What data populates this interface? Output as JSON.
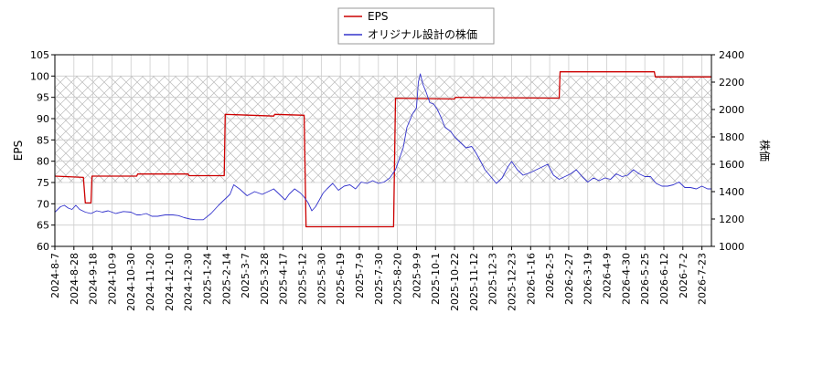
{
  "chart_data": {
    "type": "line",
    "left_axis": {
      "label": "EPS",
      "ylim": [
        60,
        105
      ],
      "ticks": [
        60,
        65,
        70,
        75,
        80,
        85,
        90,
        95,
        100,
        105
      ]
    },
    "right_axis": {
      "label": "株価",
      "ylim": [
        1000,
        2400
      ],
      "ticks": [
        1000,
        1200,
        1400,
        1600,
        1800,
        2000,
        2200,
        2400
      ]
    },
    "x_tick_labels": [
      "2024-8-7",
      "2024-8-28",
      "2024-9-18",
      "2024-10-9",
      "2024-10-30",
      "2024-11-20",
      "2024-12-10",
      "2024-12-30",
      "2025-1-24",
      "2025-2-14",
      "2025-3-7",
      "2025-3-28",
      "2025-4-17",
      "2025-5-12",
      "2025-5-30",
      "2025-6-19",
      "2025-7-9",
      "2025-7-30",
      "2025-8-20",
      "2025-9-9",
      "2025-10-1",
      "2025-10-22",
      "2025-11-12",
      "2025-12-3",
      "2025-12-23",
      "2026-1-16",
      "2026-2-5",
      "2026-2-27",
      "2026-3-19",
      "2026-4-9",
      "2026-4-30",
      "2026-5-25",
      "2026-6-12",
      "2026-7-2",
      "2026-7-23"
    ],
    "x_range": [
      0,
      34.5
    ],
    "hatch_band": {
      "axis": "left",
      "y_from": 75,
      "y_to": 100
    },
    "grid": true,
    "legend": {
      "placement": "top-center",
      "entries": [
        {
          "name": "EPS",
          "color": "#cc0000"
        },
        {
          "name": "オリジナル設計の株価",
          "color": "#3333cc"
        }
      ]
    },
    "series": [
      {
        "name": "EPS",
        "axis": "left",
        "color": "#cc0000",
        "points": [
          [
            0,
            76.5
          ],
          [
            1.5,
            76.2
          ],
          [
            1.6,
            70.2
          ],
          [
            1.9,
            70.2
          ],
          [
            1.95,
            76.5
          ],
          [
            4.3,
            76.5
          ],
          [
            4.35,
            77.0
          ],
          [
            7.0,
            77.0
          ],
          [
            7.05,
            76.6
          ],
          [
            8.9,
            76.6
          ],
          [
            8.95,
            91.0
          ],
          [
            11.5,
            90.6
          ],
          [
            11.55,
            91.0
          ],
          [
            13.1,
            90.8
          ],
          [
            13.2,
            64.6
          ],
          [
            17.8,
            64.6
          ],
          [
            17.9,
            94.8
          ],
          [
            21.0,
            94.6
          ],
          [
            21.05,
            95.0
          ],
          [
            26.5,
            94.8
          ],
          [
            26.55,
            101.0
          ],
          [
            30.3,
            101.0
          ],
          [
            31.5,
            101.0
          ],
          [
            31.55,
            99.8
          ],
          [
            34.5,
            99.8
          ]
        ]
      },
      {
        "name": "オリジナル設計の株価",
        "axis": "right",
        "color": "#3333cc",
        "points": [
          [
            0.0,
            1250
          ],
          [
            0.3,
            1290
          ],
          [
            0.5,
            1300
          ],
          [
            0.7,
            1280
          ],
          [
            0.9,
            1270
          ],
          [
            1.1,
            1300
          ],
          [
            1.3,
            1270
          ],
          [
            1.6,
            1250
          ],
          [
            1.9,
            1240
          ],
          [
            2.2,
            1260
          ],
          [
            2.5,
            1250
          ],
          [
            2.8,
            1260
          ],
          [
            3.2,
            1240
          ],
          [
            3.6,
            1255
          ],
          [
            4.0,
            1250
          ],
          [
            4.3,
            1230
          ],
          [
            4.5,
            1230
          ],
          [
            4.8,
            1240
          ],
          [
            5.1,
            1220
          ],
          [
            5.4,
            1220
          ],
          [
            5.8,
            1230
          ],
          [
            6.2,
            1230
          ],
          [
            6.5,
            1225
          ],
          [
            6.8,
            1210
          ],
          [
            7.1,
            1200
          ],
          [
            7.4,
            1195
          ],
          [
            7.8,
            1195
          ],
          [
            8.2,
            1240
          ],
          [
            8.6,
            1300
          ],
          [
            8.9,
            1340
          ],
          [
            9.2,
            1380
          ],
          [
            9.4,
            1450
          ],
          [
            9.7,
            1420
          ],
          [
            10.1,
            1370
          ],
          [
            10.5,
            1400
          ],
          [
            10.9,
            1380
          ],
          [
            11.2,
            1400
          ],
          [
            11.5,
            1420
          ],
          [
            11.8,
            1380
          ],
          [
            12.1,
            1340
          ],
          [
            12.3,
            1380
          ],
          [
            12.6,
            1420
          ],
          [
            12.9,
            1390
          ],
          [
            13.1,
            1360
          ],
          [
            13.3,
            1320
          ],
          [
            13.5,
            1260
          ],
          [
            13.7,
            1290
          ],
          [
            13.9,
            1340
          ],
          [
            14.1,
            1390
          ],
          [
            14.3,
            1420
          ],
          [
            14.6,
            1460
          ],
          [
            14.9,
            1410
          ],
          [
            15.2,
            1440
          ],
          [
            15.5,
            1450
          ],
          [
            15.8,
            1420
          ],
          [
            16.1,
            1470
          ],
          [
            16.4,
            1460
          ],
          [
            16.7,
            1480
          ],
          [
            17.0,
            1460
          ],
          [
            17.3,
            1470
          ],
          [
            17.6,
            1500
          ],
          [
            17.9,
            1560
          ],
          [
            18.1,
            1640
          ],
          [
            18.3,
            1720
          ],
          [
            18.5,
            1870
          ],
          [
            18.8,
            1970
          ],
          [
            19.0,
            2010
          ],
          [
            19.1,
            2200
          ],
          [
            19.2,
            2260
          ],
          [
            19.35,
            2180
          ],
          [
            19.5,
            2130
          ],
          [
            19.7,
            2050
          ],
          [
            19.9,
            2040
          ],
          [
            20.1,
            2000
          ],
          [
            20.3,
            1940
          ],
          [
            20.5,
            1870
          ],
          [
            20.8,
            1840
          ],
          [
            21.0,
            1800
          ],
          [
            21.3,
            1760
          ],
          [
            21.6,
            1720
          ],
          [
            21.9,
            1730
          ],
          [
            22.1,
            1690
          ],
          [
            22.3,
            1640
          ],
          [
            22.6,
            1560
          ],
          [
            22.9,
            1510
          ],
          [
            23.2,
            1460
          ],
          [
            23.5,
            1500
          ],
          [
            23.8,
            1580
          ],
          [
            24.0,
            1620
          ],
          [
            24.3,
            1560
          ],
          [
            24.6,
            1520
          ],
          [
            25.0,
            1540
          ],
          [
            25.3,
            1560
          ],
          [
            25.6,
            1580
          ],
          [
            25.9,
            1600
          ],
          [
            26.2,
            1520
          ],
          [
            26.5,
            1490
          ],
          [
            26.8,
            1510
          ],
          [
            27.1,
            1530
          ],
          [
            27.4,
            1560
          ],
          [
            27.7,
            1510
          ],
          [
            28.0,
            1470
          ],
          [
            28.3,
            1500
          ],
          [
            28.6,
            1480
          ],
          [
            28.9,
            1500
          ],
          [
            29.2,
            1490
          ],
          [
            29.5,
            1530
          ],
          [
            29.8,
            1510
          ],
          [
            30.1,
            1520
          ],
          [
            30.4,
            1560
          ],
          [
            30.7,
            1530
          ],
          [
            31.0,
            1510
          ],
          [
            31.3,
            1510
          ],
          [
            31.6,
            1460
          ],
          [
            31.9,
            1440
          ],
          [
            32.2,
            1440
          ],
          [
            32.5,
            1450
          ],
          [
            32.8,
            1470
          ],
          [
            33.1,
            1430
          ],
          [
            33.4,
            1430
          ],
          [
            33.7,
            1420
          ],
          [
            34.0,
            1440
          ],
          [
            34.3,
            1420
          ],
          [
            34.5,
            1420
          ]
        ]
      }
    ]
  }
}
